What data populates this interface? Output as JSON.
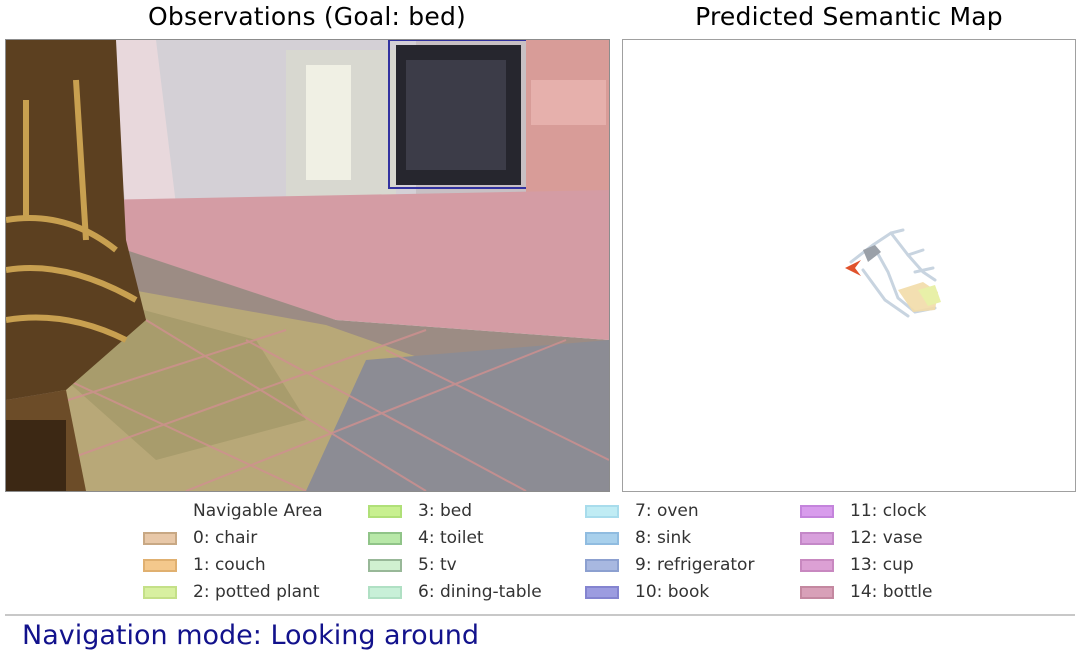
{
  "observation_panel": {
    "title": "Observations (Goal: bed)"
  },
  "map_panel": {
    "title": "Predicted Semantic Map"
  },
  "legend": {
    "items": [
      {
        "label": "Navigable Area",
        "color": "#ffffff"
      },
      {
        "label": "0: chair",
        "color": "#e8c8a8"
      },
      {
        "label": "1: couch",
        "color": "#f4c88c"
      },
      {
        "label": "2: potted plant",
        "color": "#d8f0a0"
      },
      {
        "label": "3: bed",
        "color": "#c8f090"
      },
      {
        "label": "4: toilet",
        "color": "#b8e8a8"
      },
      {
        "label": "5: tv",
        "color": "#d0f0d0"
      },
      {
        "label": "6: dining-table",
        "color": "#c8f0d8"
      },
      {
        "label": "7: oven",
        "color": "#c0ecf4"
      },
      {
        "label": "8: sink",
        "color": "#a8d0ec"
      },
      {
        "label": "9: refrigerator",
        "color": "#a8b8e0"
      },
      {
        "label": "10: book",
        "color": "#9c9ce0"
      },
      {
        "label": "11: clock",
        "color": "#d89cec"
      },
      {
        "label": "12: vase",
        "color": "#d8a0dc"
      },
      {
        "label": "13: cup",
        "color": "#dca0d4"
      },
      {
        "label": "14: bottle",
        "color": "#d8a0b8"
      }
    ]
  },
  "status": {
    "text": "Navigation mode: Looking around"
  },
  "colors": {
    "status_text": "#12128c",
    "agent_arrow": "#e0522c"
  }
}
